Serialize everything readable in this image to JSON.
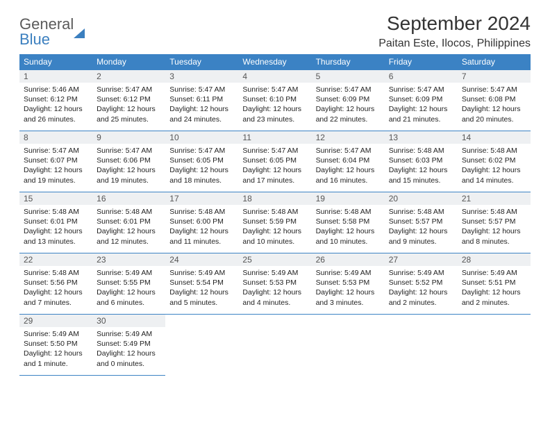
{
  "brand": {
    "part1": "General",
    "part2": "Blue"
  },
  "title": "September 2024",
  "location": "Paitan Este, Ilocos, Philippines",
  "colors": {
    "header_bg": "#3b82c4",
    "header_text": "#ffffff",
    "daynum_bg": "#eef0f2",
    "border": "#3b82c4",
    "brand_gray": "#5a5a5a",
    "brand_blue": "#3b7fbf",
    "page_bg": "#ffffff"
  },
  "weekdays": [
    "Sunday",
    "Monday",
    "Tuesday",
    "Wednesday",
    "Thursday",
    "Friday",
    "Saturday"
  ],
  "weeks": [
    [
      {
        "n": "1",
        "sr": "Sunrise: 5:46 AM",
        "ss": "Sunset: 6:12 PM",
        "d1": "Daylight: 12 hours",
        "d2": "and 26 minutes."
      },
      {
        "n": "2",
        "sr": "Sunrise: 5:47 AM",
        "ss": "Sunset: 6:12 PM",
        "d1": "Daylight: 12 hours",
        "d2": "and 25 minutes."
      },
      {
        "n": "3",
        "sr": "Sunrise: 5:47 AM",
        "ss": "Sunset: 6:11 PM",
        "d1": "Daylight: 12 hours",
        "d2": "and 24 minutes."
      },
      {
        "n": "4",
        "sr": "Sunrise: 5:47 AM",
        "ss": "Sunset: 6:10 PM",
        "d1": "Daylight: 12 hours",
        "d2": "and 23 minutes."
      },
      {
        "n": "5",
        "sr": "Sunrise: 5:47 AM",
        "ss": "Sunset: 6:09 PM",
        "d1": "Daylight: 12 hours",
        "d2": "and 22 minutes."
      },
      {
        "n": "6",
        "sr": "Sunrise: 5:47 AM",
        "ss": "Sunset: 6:09 PM",
        "d1": "Daylight: 12 hours",
        "d2": "and 21 minutes."
      },
      {
        "n": "7",
        "sr": "Sunrise: 5:47 AM",
        "ss": "Sunset: 6:08 PM",
        "d1": "Daylight: 12 hours",
        "d2": "and 20 minutes."
      }
    ],
    [
      {
        "n": "8",
        "sr": "Sunrise: 5:47 AM",
        "ss": "Sunset: 6:07 PM",
        "d1": "Daylight: 12 hours",
        "d2": "and 19 minutes."
      },
      {
        "n": "9",
        "sr": "Sunrise: 5:47 AM",
        "ss": "Sunset: 6:06 PM",
        "d1": "Daylight: 12 hours",
        "d2": "and 19 minutes."
      },
      {
        "n": "10",
        "sr": "Sunrise: 5:47 AM",
        "ss": "Sunset: 6:05 PM",
        "d1": "Daylight: 12 hours",
        "d2": "and 18 minutes."
      },
      {
        "n": "11",
        "sr": "Sunrise: 5:47 AM",
        "ss": "Sunset: 6:05 PM",
        "d1": "Daylight: 12 hours",
        "d2": "and 17 minutes."
      },
      {
        "n": "12",
        "sr": "Sunrise: 5:47 AM",
        "ss": "Sunset: 6:04 PM",
        "d1": "Daylight: 12 hours",
        "d2": "and 16 minutes."
      },
      {
        "n": "13",
        "sr": "Sunrise: 5:48 AM",
        "ss": "Sunset: 6:03 PM",
        "d1": "Daylight: 12 hours",
        "d2": "and 15 minutes."
      },
      {
        "n": "14",
        "sr": "Sunrise: 5:48 AM",
        "ss": "Sunset: 6:02 PM",
        "d1": "Daylight: 12 hours",
        "d2": "and 14 minutes."
      }
    ],
    [
      {
        "n": "15",
        "sr": "Sunrise: 5:48 AM",
        "ss": "Sunset: 6:01 PM",
        "d1": "Daylight: 12 hours",
        "d2": "and 13 minutes."
      },
      {
        "n": "16",
        "sr": "Sunrise: 5:48 AM",
        "ss": "Sunset: 6:01 PM",
        "d1": "Daylight: 12 hours",
        "d2": "and 12 minutes."
      },
      {
        "n": "17",
        "sr": "Sunrise: 5:48 AM",
        "ss": "Sunset: 6:00 PM",
        "d1": "Daylight: 12 hours",
        "d2": "and 11 minutes."
      },
      {
        "n": "18",
        "sr": "Sunrise: 5:48 AM",
        "ss": "Sunset: 5:59 PM",
        "d1": "Daylight: 12 hours",
        "d2": "and 10 minutes."
      },
      {
        "n": "19",
        "sr": "Sunrise: 5:48 AM",
        "ss": "Sunset: 5:58 PM",
        "d1": "Daylight: 12 hours",
        "d2": "and 10 minutes."
      },
      {
        "n": "20",
        "sr": "Sunrise: 5:48 AM",
        "ss": "Sunset: 5:57 PM",
        "d1": "Daylight: 12 hours",
        "d2": "and 9 minutes."
      },
      {
        "n": "21",
        "sr": "Sunrise: 5:48 AM",
        "ss": "Sunset: 5:57 PM",
        "d1": "Daylight: 12 hours",
        "d2": "and 8 minutes."
      }
    ],
    [
      {
        "n": "22",
        "sr": "Sunrise: 5:48 AM",
        "ss": "Sunset: 5:56 PM",
        "d1": "Daylight: 12 hours",
        "d2": "and 7 minutes."
      },
      {
        "n": "23",
        "sr": "Sunrise: 5:49 AM",
        "ss": "Sunset: 5:55 PM",
        "d1": "Daylight: 12 hours",
        "d2": "and 6 minutes."
      },
      {
        "n": "24",
        "sr": "Sunrise: 5:49 AM",
        "ss": "Sunset: 5:54 PM",
        "d1": "Daylight: 12 hours",
        "d2": "and 5 minutes."
      },
      {
        "n": "25",
        "sr": "Sunrise: 5:49 AM",
        "ss": "Sunset: 5:53 PM",
        "d1": "Daylight: 12 hours",
        "d2": "and 4 minutes."
      },
      {
        "n": "26",
        "sr": "Sunrise: 5:49 AM",
        "ss": "Sunset: 5:53 PM",
        "d1": "Daylight: 12 hours",
        "d2": "and 3 minutes."
      },
      {
        "n": "27",
        "sr": "Sunrise: 5:49 AM",
        "ss": "Sunset: 5:52 PM",
        "d1": "Daylight: 12 hours",
        "d2": "and 2 minutes."
      },
      {
        "n": "28",
        "sr": "Sunrise: 5:49 AM",
        "ss": "Sunset: 5:51 PM",
        "d1": "Daylight: 12 hours",
        "d2": "and 2 minutes."
      }
    ],
    [
      {
        "n": "29",
        "sr": "Sunrise: 5:49 AM",
        "ss": "Sunset: 5:50 PM",
        "d1": "Daylight: 12 hours",
        "d2": "and 1 minute."
      },
      {
        "n": "30",
        "sr": "Sunrise: 5:49 AM",
        "ss": "Sunset: 5:49 PM",
        "d1": "Daylight: 12 hours",
        "d2": "and 0 minutes."
      },
      null,
      null,
      null,
      null,
      null
    ]
  ]
}
